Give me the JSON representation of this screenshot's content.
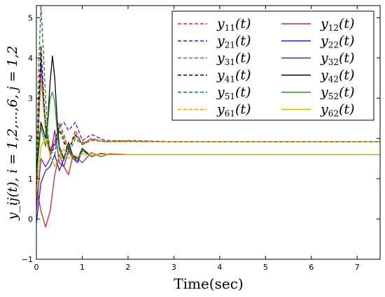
{
  "chart_data": {
    "type": "line",
    "xlabel": "Time(sec)",
    "ylabel": "y_ij(t), i = 1,2,...,6, j = 1,2",
    "xlim": [
      0,
      7.5
    ],
    "ylim": [
      -1,
      5.3
    ],
    "x_ticks": [
      0,
      1,
      2,
      3,
      4,
      5,
      6,
      7
    ],
    "y_ticks": [
      -1,
      0,
      1,
      2,
      3,
      4,
      5
    ],
    "x_tick_labels": [
      "0",
      "1",
      "2",
      "3",
      "4",
      "5",
      "6",
      "7"
    ],
    "y_tick_labels": [
      "−1",
      "0",
      "1",
      "2",
      "3",
      "4",
      "5"
    ],
    "legend": {
      "placement": "top-right",
      "columns": 2,
      "entries": [
        {
          "label": "y11(t)",
          "series": "y11"
        },
        {
          "label": "y12(t)",
          "series": "y12"
        },
        {
          "label": "y21(t)",
          "series": "y21"
        },
        {
          "label": "y22(t)",
          "series": "y22"
        },
        {
          "label": "y31(t)",
          "series": "y31"
        },
        {
          "label": "y32(t)",
          "series": "y32"
        },
        {
          "label": "y41(t)",
          "series": "y41"
        },
        {
          "label": "y42(t)",
          "series": "y42"
        },
        {
          "label": "y51(t)",
          "series": "y51"
        },
        {
          "label": "y52(t)",
          "series": "y52"
        },
        {
          "label": "y61(t)",
          "series": "y61"
        },
        {
          "label": "y62(t)",
          "series": "y62"
        }
      ]
    },
    "series": [
      {
        "name": "y11(t)",
        "key": "y11",
        "color": "#d62728",
        "dashed": true,
        "x": [
          0,
          0.05,
          0.1,
          0.15,
          0.2,
          0.3,
          0.4,
          0.5,
          0.6,
          0.7,
          0.85,
          1.0,
          1.2,
          1.5,
          2.0,
          3.0,
          7.5
        ],
        "y": [
          0.5,
          2.6,
          4.1,
          3.1,
          2.4,
          1.7,
          1.9,
          2.4,
          2.1,
          1.7,
          2.2,
          1.85,
          2.0,
          1.92,
          1.95,
          1.92,
          1.92
        ]
      },
      {
        "name": "y21(t)",
        "key": "y21",
        "color": "#1f1fd6",
        "dashed": true,
        "x": [
          0,
          0.05,
          0.1,
          0.15,
          0.2,
          0.3,
          0.4,
          0.5,
          0.6,
          0.7,
          0.85,
          1.0,
          1.2,
          1.5,
          2.0,
          3.0,
          7.5
        ],
        "y": [
          0.3,
          2.2,
          3.9,
          3.0,
          2.2,
          1.6,
          1.9,
          2.3,
          2.4,
          2.2,
          2.4,
          1.95,
          2.1,
          1.95,
          1.93,
          1.92,
          1.92
        ]
      },
      {
        "name": "y31(t)",
        "key": "y31",
        "color": "#b040b0",
        "dashed": true,
        "x": [
          0,
          0.05,
          0.1,
          0.15,
          0.2,
          0.3,
          0.4,
          0.5,
          0.6,
          0.7,
          0.85,
          1.0,
          1.2,
          1.5,
          2.0,
          3.0,
          7.5
        ],
        "y": [
          0.4,
          2.4,
          3.6,
          2.9,
          2.3,
          1.7,
          1.95,
          2.2,
          2.0,
          1.75,
          2.1,
          1.9,
          1.98,
          1.93,
          1.92,
          1.92,
          1.92
        ]
      },
      {
        "name": "y41(t)",
        "key": "y41",
        "color": "#000000",
        "dashed": true,
        "x": [
          0,
          0.05,
          0.1,
          0.15,
          0.2,
          0.3,
          0.4,
          0.5,
          0.6,
          0.7,
          0.85,
          1.0,
          1.2,
          1.5,
          2.0,
          3.0,
          7.5
        ],
        "y": [
          0.6,
          2.8,
          4.3,
          3.2,
          2.3,
          1.6,
          1.8,
          2.2,
          1.9,
          1.7,
          2.1,
          1.85,
          1.97,
          1.92,
          1.92,
          1.92,
          1.92
        ]
      },
      {
        "name": "y51(t)",
        "key": "y51",
        "color": "#1a7a1a",
        "dashed": true,
        "x": [
          0,
          0.05,
          0.1,
          0.15,
          0.2,
          0.25,
          0.3,
          0.4,
          0.5,
          0.6,
          0.7,
          0.85,
          1.0,
          1.2,
          1.5,
          2.0,
          3.0,
          7.5
        ],
        "y": [
          1.0,
          3.8,
          5.3,
          4.2,
          3.0,
          2.1,
          1.7,
          1.6,
          2.3,
          2.0,
          1.6,
          2.0,
          1.85,
          1.95,
          1.92,
          1.92,
          1.92,
          1.92
        ]
      },
      {
        "name": "y61(t)",
        "key": "y61",
        "color": "#e0a000",
        "dashed": true,
        "x": [
          0,
          0.05,
          0.1,
          0.15,
          0.2,
          0.3,
          0.4,
          0.5,
          0.6,
          0.7,
          0.85,
          1.0,
          1.2,
          1.5,
          2.0,
          3.0,
          7.5
        ],
        "y": [
          0.5,
          2.4,
          3.4,
          2.8,
          2.2,
          1.75,
          1.95,
          2.15,
          1.95,
          1.8,
          2.05,
          1.88,
          1.96,
          1.93,
          1.92,
          1.92,
          1.92
        ]
      },
      {
        "name": "y12(t)",
        "key": "y12",
        "color": "#d62728",
        "dashed": false,
        "x": [
          0,
          0.1,
          0.2,
          0.3,
          0.4,
          0.5,
          0.6,
          0.7,
          0.8,
          0.9,
          1.0,
          1.2,
          1.4,
          1.6,
          2.0,
          3.0,
          7.5
        ],
        "y": [
          0.8,
          0.2,
          -0.2,
          0.2,
          1.1,
          1.6,
          1.3,
          1.1,
          1.6,
          1.5,
          1.4,
          1.65,
          1.55,
          1.62,
          1.6,
          1.6,
          1.6
        ]
      },
      {
        "name": "y22(t)",
        "key": "y22",
        "color": "#1f1fd6",
        "dashed": false,
        "x": [
          0,
          0.1,
          0.2,
          0.3,
          0.4,
          0.5,
          0.6,
          0.7,
          0.8,
          0.9,
          1.0,
          1.2,
          1.4,
          1.6,
          2.0,
          3.0,
          7.5
        ],
        "y": [
          -0.1,
          0.9,
          1.2,
          1.3,
          1.6,
          1.2,
          1.5,
          1.8,
          1.5,
          1.4,
          1.7,
          1.55,
          1.63,
          1.6,
          1.6,
          1.6,
          1.6
        ]
      },
      {
        "name": "y32(t)",
        "key": "y32",
        "color": "#7a1fb0",
        "dashed": false,
        "x": [
          0,
          0.1,
          0.2,
          0.3,
          0.4,
          0.5,
          0.6,
          0.7,
          0.8,
          0.9,
          1.0,
          1.2,
          1.4,
          1.6,
          2.0,
          3.0,
          7.5
        ],
        "y": [
          0.2,
          1.5,
          1.3,
          1.5,
          2.2,
          1.4,
          1.3,
          1.7,
          1.5,
          1.45,
          1.7,
          1.55,
          1.62,
          1.6,
          1.6,
          1.6,
          1.6
        ]
      },
      {
        "name": "y42(t)",
        "key": "y42",
        "color": "#000000",
        "dashed": false,
        "x": [
          0,
          0.1,
          0.2,
          0.25,
          0.3,
          0.35,
          0.4,
          0.45,
          0.5,
          0.6,
          0.7,
          0.8,
          0.9,
          1.0,
          1.2,
          1.4,
          1.6,
          2.0,
          3.0,
          7.5
        ],
        "y": [
          1.2,
          2.4,
          2.0,
          2.5,
          3.4,
          4.05,
          3.5,
          2.5,
          1.8,
          1.5,
          1.9,
          1.55,
          1.5,
          1.75,
          1.55,
          1.63,
          1.6,
          1.6,
          1.6,
          1.6
        ]
      },
      {
        "name": "y52(t)",
        "key": "y52",
        "color": "#2a9a2a",
        "dashed": false,
        "x": [
          0,
          0.1,
          0.2,
          0.25,
          0.3,
          0.35,
          0.4,
          0.45,
          0.5,
          0.6,
          0.7,
          0.8,
          0.9,
          1.0,
          1.2,
          1.4,
          1.6,
          2.0,
          3.0,
          7.5
        ],
        "y": [
          1.0,
          2.3,
          1.8,
          2.4,
          3.0,
          3.15,
          2.9,
          2.2,
          1.7,
          1.45,
          1.85,
          1.5,
          1.5,
          1.7,
          1.55,
          1.62,
          1.6,
          1.6,
          1.6,
          1.6
        ]
      },
      {
        "name": "y62(t)",
        "key": "y62",
        "color": "#e0b000",
        "dashed": false,
        "x": [
          0,
          0.1,
          0.2,
          0.3,
          0.4,
          0.5,
          0.6,
          0.7,
          0.8,
          0.9,
          1.0,
          1.2,
          1.4,
          1.6,
          2.0,
          3.0,
          7.5
        ],
        "y": [
          0.6,
          1.8,
          2.0,
          1.6,
          1.3,
          1.55,
          1.75,
          1.5,
          1.6,
          1.55,
          1.62,
          1.58,
          1.61,
          1.6,
          1.6,
          1.6,
          1.6
        ]
      }
    ]
  }
}
